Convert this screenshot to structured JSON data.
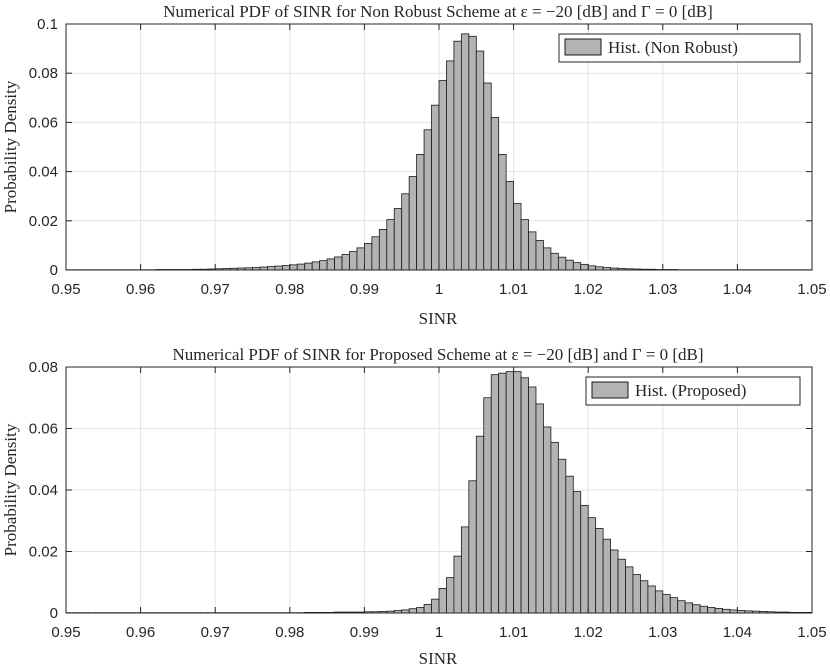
{
  "chart_data": [
    {
      "type": "bar",
      "title": "Numerical PDF of SINR for Non Robust Scheme at ε = −20 [dB] and Γ = 0 [dB]",
      "xlabel": "SINR",
      "ylabel": "Probability Density",
      "xlim": [
        0.95,
        1.05
      ],
      "ylim": [
        0,
        0.1
      ],
      "xticks": [
        "0.95",
        "0.96",
        "0.97",
        "0.98",
        "0.99",
        "1",
        "1.01",
        "1.02",
        "1.03",
        "1.04",
        "1.05"
      ],
      "yticks": [
        "0",
        "0.02",
        "0.04",
        "0.06",
        "0.08",
        "0.1"
      ],
      "grid": true,
      "legend": {
        "position": "top-right",
        "entries": [
          "Hist. (Non Robust)"
        ]
      },
      "bin_width": 0.001,
      "bin_start": 0.95,
      "colors": {
        "bar_fill": "#b3b3b3",
        "bar_edge": "#1a1a1a"
      },
      "series": [
        {
          "name": "Hist. (Non Robust)",
          "values": [
            0.0001,
            0.0001,
            0.0001,
            0.0001,
            0.0001,
            0.0001,
            0.0001,
            0.0001,
            0.0001,
            0.0001,
            0.0001,
            0.0001,
            0.0002,
            0.0002,
            0.0002,
            0.0002,
            0.0002,
            0.0003,
            0.0003,
            0.0004,
            0.0005,
            0.0006,
            0.0007,
            0.0008,
            0.0009,
            0.001,
            0.0012,
            0.0014,
            0.0016,
            0.0018,
            0.0021,
            0.0024,
            0.0028,
            0.0033,
            0.0038,
            0.0045,
            0.0053,
            0.0063,
            0.0075,
            0.009,
            0.0108,
            0.0135,
            0.0165,
            0.0205,
            0.025,
            0.031,
            0.038,
            0.047,
            0.057,
            0.067,
            0.077,
            0.085,
            0.093,
            0.096,
            0.095,
            0.089,
            0.076,
            0.062,
            0.047,
            0.036,
            0.027,
            0.0205,
            0.0155,
            0.012,
            0.009,
            0.0068,
            0.0052,
            0.004,
            0.003,
            0.0023,
            0.0017,
            0.0013,
            0.001,
            0.0008,
            0.0006,
            0.0005,
            0.0004,
            0.0003,
            0.0003,
            0.0002,
            0.0002,
            0.0002,
            0.0001,
            0.0001,
            0.0001,
            0.0001,
            0.0001,
            0.0001,
            0.0001,
            0.0001,
            0.0001,
            0.0001,
            0.0001,
            0.0001,
            0.0001,
            0.0001,
            0.0001,
            0.0001,
            0.0001,
            0.0001
          ]
        }
      ]
    },
    {
      "type": "bar",
      "title": "Numerical PDF of SINR for Proposed Scheme at ε = −20 [dB] and Γ = 0 [dB]",
      "xlabel": "SINR",
      "ylabel": "Probability Density",
      "xlim": [
        0.95,
        1.05
      ],
      "ylim": [
        0,
        0.08
      ],
      "xticks": [
        "0.95",
        "0.96",
        "0.97",
        "0.98",
        "0.99",
        "1",
        "1.01",
        "1.02",
        "1.03",
        "1.04",
        "1.05"
      ],
      "yticks": [
        "0",
        "0.02",
        "0.04",
        "0.06",
        "0.08"
      ],
      "grid": true,
      "legend": {
        "position": "top-right",
        "entries": [
          "Hist. (Proposed)"
        ]
      },
      "bin_width": 0.001,
      "bin_start": 0.95,
      "colors": {
        "bar_fill": "#b3b3b3",
        "bar_edge": "#1a1a1a"
      },
      "series": [
        {
          "name": "Hist. (Proposed)",
          "values": [
            0.0001,
            0.0001,
            0.0001,
            0.0001,
            0.0001,
            0.0001,
            0.0001,
            0.0001,
            0.0001,
            0.0001,
            0.0001,
            0.0001,
            0.0001,
            0.0001,
            0.0001,
            0.0001,
            0.0001,
            0.0001,
            0.0001,
            0.0001,
            0.0001,
            0.0001,
            0.0001,
            0.0001,
            0.0001,
            0.0001,
            0.0001,
            0.0001,
            0.0001,
            0.0001,
            0.0001,
            0.0001,
            0.0002,
            0.0002,
            0.0002,
            0.0002,
            0.0003,
            0.0003,
            0.0003,
            0.0003,
            0.0004,
            0.0004,
            0.0005,
            0.0006,
            0.0008,
            0.001,
            0.0014,
            0.0018,
            0.0028,
            0.0045,
            0.008,
            0.0115,
            0.0185,
            0.028,
            0.043,
            0.0575,
            0.07,
            0.0775,
            0.078,
            0.0785,
            0.0785,
            0.0765,
            0.0735,
            0.068,
            0.0605,
            0.0555,
            0.05,
            0.0445,
            0.0395,
            0.035,
            0.031,
            0.0275,
            0.024,
            0.0205,
            0.0175,
            0.015,
            0.0125,
            0.0105,
            0.0088,
            0.0072,
            0.006,
            0.005,
            0.004,
            0.0033,
            0.0027,
            0.0022,
            0.0018,
            0.0015,
            0.0012,
            0.001,
            0.0008,
            0.0007,
            0.0006,
            0.0005,
            0.0004,
            0.0003,
            0.0003,
            0.0002,
            0.0002,
            0.0002
          ]
        }
      ]
    }
  ]
}
